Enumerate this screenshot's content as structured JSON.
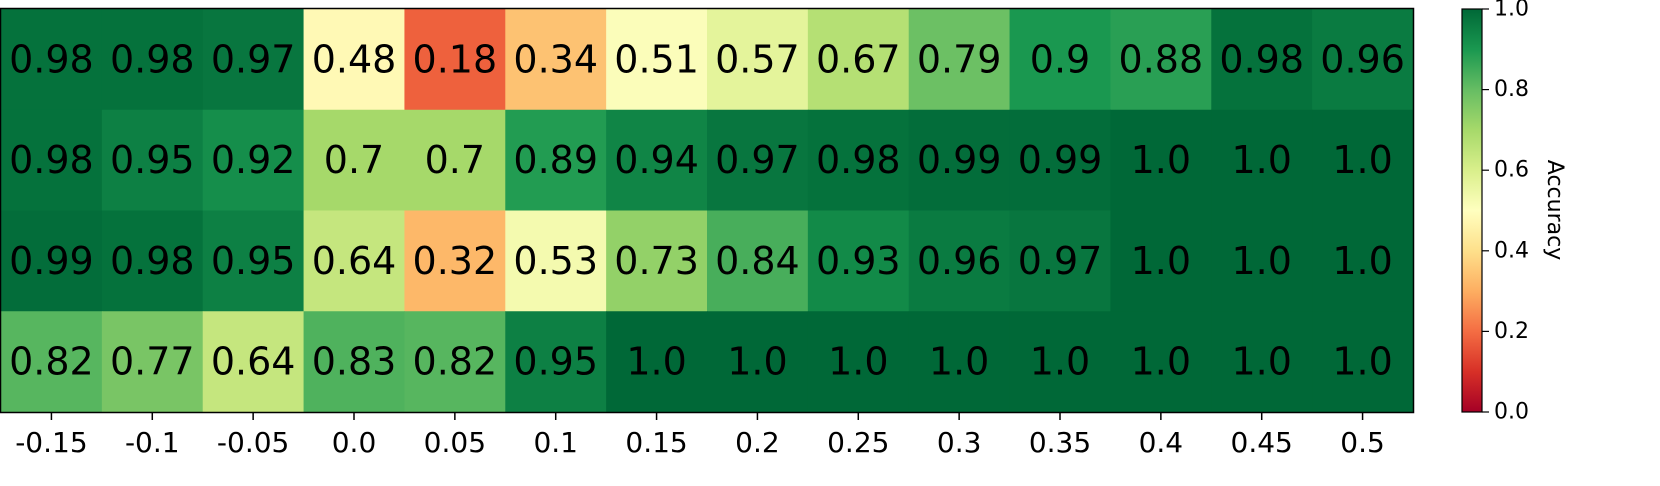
{
  "chart_data": {
    "type": "heatmap",
    "x_ticks": [
      "-0.15",
      "-0.1",
      "-0.05",
      "0.0",
      "0.05",
      "0.1",
      "0.15",
      "0.2",
      "0.25",
      "0.3",
      "0.35",
      "0.4",
      "0.45",
      "0.5"
    ],
    "rows": [
      {
        "values": [
          0.98,
          0.98,
          0.97,
          0.48,
          0.18,
          0.34,
          0.51,
          0.57,
          0.67,
          0.79,
          0.9,
          0.88,
          0.98,
          0.96
        ],
        "labels": [
          "0.98",
          "0.98",
          "0.97",
          "0.48",
          "0.18",
          "0.34",
          "0.51",
          "0.57",
          "0.67",
          "0.79",
          "0.9",
          "0.88",
          "0.98",
          "0.96"
        ]
      },
      {
        "values": [
          0.98,
          0.95,
          0.92,
          0.7,
          0.7,
          0.89,
          0.94,
          0.97,
          0.98,
          0.99,
          0.99,
          1.0,
          1.0,
          1.0
        ],
        "labels": [
          "0.98",
          "0.95",
          "0.92",
          "0.7",
          "0.7",
          "0.89",
          "0.94",
          "0.97",
          "0.98",
          "0.99",
          "0.99",
          "1.0",
          "1.0",
          "1.0"
        ]
      },
      {
        "values": [
          0.99,
          0.98,
          0.95,
          0.64,
          0.32,
          0.53,
          0.73,
          0.84,
          0.93,
          0.96,
          0.97,
          1.0,
          1.0,
          1.0
        ],
        "labels": [
          "0.99",
          "0.98",
          "0.95",
          "0.64",
          "0.32",
          "0.53",
          "0.73",
          "0.84",
          "0.93",
          "0.96",
          "0.97",
          "1.0",
          "1.0",
          "1.0"
        ]
      },
      {
        "values": [
          0.82,
          0.77,
          0.64,
          0.83,
          0.82,
          0.95,
          1.0,
          1.0,
          1.0,
          1.0,
          1.0,
          1.0,
          1.0,
          1.0
        ],
        "labels": [
          "0.82",
          "0.77",
          "0.64",
          "0.83",
          "0.82",
          "0.95",
          "1.0",
          "1.0",
          "1.0",
          "1.0",
          "1.0",
          "1.0",
          "1.0",
          "1.0"
        ]
      }
    ],
    "colorbar": {
      "label": "Accuracy",
      "range": [
        0.0,
        1.0
      ],
      "ticks": [
        "0.0",
        "0.2",
        "0.4",
        "0.6",
        "0.8",
        "1.0"
      ],
      "colormap": "RdYlGn"
    }
  }
}
